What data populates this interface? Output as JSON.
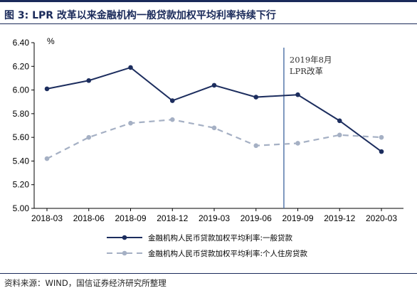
{
  "header": {
    "title": "图 3:  LPR 改革以来金融机构一般贷款加权平均利率持续下行"
  },
  "footer": {
    "source": "资料来源：WIND，国信证券经济研究所整理"
  },
  "chart_data": {
    "type": "line",
    "title": "",
    "xlabel": "",
    "ylabel": "%",
    "categories": [
      "2018-03",
      "2018-06",
      "2018-09",
      "2018-12",
      "2019-03",
      "2019-06",
      "2019-09",
      "2019-12",
      "2020-03"
    ],
    "ylim": [
      5.0,
      6.4
    ],
    "yticks": [
      "5.00",
      "5.20",
      "5.40",
      "5.60",
      "5.80",
      "6.00",
      "6.20",
      "6.40"
    ],
    "grid": false,
    "legend_position": "bottom",
    "series": [
      {
        "name": "金融机构人民币贷款加权平均利率:一般贷款",
        "style": "solid",
        "color": "#1c2d5e",
        "values": [
          6.01,
          6.08,
          6.19,
          5.91,
          6.04,
          5.94,
          5.96,
          5.74,
          5.48
        ]
      },
      {
        "name": "金融机构人民币贷款加权平均利率:个人住房贷款",
        "style": "dashed",
        "color": "#a5b0c4",
        "values": [
          5.42,
          5.6,
          5.72,
          5.75,
          5.68,
          5.53,
          5.55,
          5.62,
          5.6
        ]
      }
    ],
    "annotation": {
      "lines": [
        "2019年8月",
        "LPR改革"
      ],
      "x_position": "between 2019-06 and 2019-09",
      "color": "#4a6fa5"
    }
  }
}
